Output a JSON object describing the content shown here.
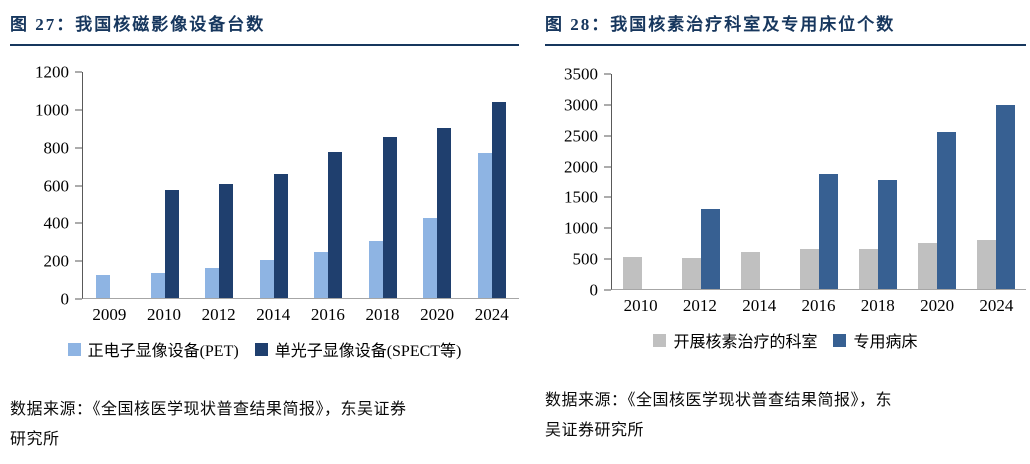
{
  "left_panel": {
    "title": "图 27：我国核磁影像设备台数",
    "source": "数据来源：《全国核医学现状普查结果简报》，东吴证券\n研究所"
  },
  "right_panel": {
    "title": "图 28：我国核素治疗科室及专用床位个数",
    "source": "数据来源：《全国核医学现状普查结果简报》，东\n吴证券研究所"
  },
  "colors": {
    "title_navy": "#17375E",
    "pet_light_blue": "#8EB4E3",
    "spect_dark_navy": "#1F3F6E",
    "dept_gray": "#C0C0C0",
    "bed_steel_blue": "#376092",
    "axis_dark": "#595959",
    "baseline_gray": "#A6A6A6"
  },
  "chart_data": [
    {
      "type": "bar",
      "title": "图 27：我国核磁影像设备台数",
      "categories": [
        "2009",
        "2010",
        "2012",
        "2014",
        "2016",
        "2018",
        "2020",
        "2024"
      ],
      "series": [
        {
          "name": "正电子显像设备(PET)",
          "color": "#8EB4E3",
          "values": [
            120,
            135,
            160,
            200,
            245,
            305,
            425,
            770
          ]
        },
        {
          "name": "单光子显像设备(SPECT等)",
          "color": "#1F3F6E",
          "values": [
            0,
            575,
            605,
            660,
            775,
            855,
            905,
            1040
          ]
        }
      ],
      "xlabel": "",
      "ylabel": "",
      "ylim": [
        0,
        1200
      ],
      "ytick_step": 200,
      "grid": false,
      "legend_position": "bottom"
    },
    {
      "type": "bar",
      "title": "图 28：我国核素治疗科室及专用床位个数",
      "categories": [
        "2010",
        "2012",
        "2014",
        "2016",
        "2018",
        "2020",
        "2024"
      ],
      "series": [
        {
          "name": "开展核素治疗的科室",
          "color": "#C0C0C0",
          "values": [
            520,
            505,
            600,
            650,
            650,
            755,
            790
          ]
        },
        {
          "name": "专用病床",
          "color": "#376092",
          "values": [
            0,
            1300,
            0,
            1880,
            1780,
            2550,
            3000
          ]
        }
      ],
      "xlabel": "",
      "ylabel": "",
      "ylim": [
        0,
        3500
      ],
      "ytick_step": 500,
      "grid": false,
      "legend_position": "bottom"
    }
  ]
}
